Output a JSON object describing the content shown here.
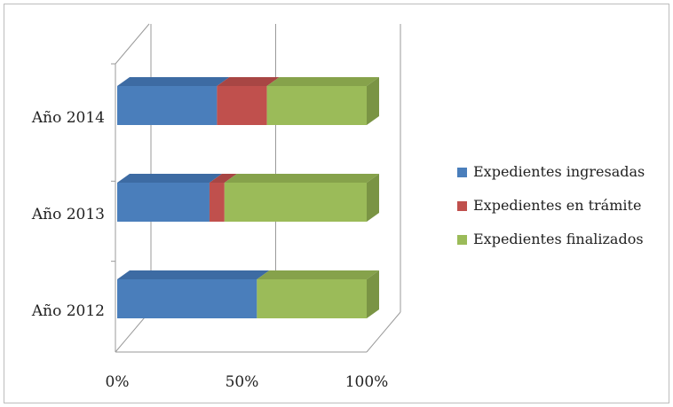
{
  "chart_data": {
    "type": "bar",
    "orientation": "horizontal",
    "stacked": "percent",
    "three_d": true,
    "categories": [
      "Año 2012",
      "Año 2013",
      "Año 2014"
    ],
    "series": [
      {
        "name": "Expedientes ingresadas",
        "values": [
          56,
          37,
          40
        ],
        "color": "#4a7ebb"
      },
      {
        "name": "Expedientes en trámite",
        "values": [
          0,
          6,
          20
        ],
        "color": "#c0504d"
      },
      {
        "name": "Expedientes finalizados",
        "values": [
          44,
          57,
          40
        ],
        "color": "#9bbb59"
      }
    ],
    "x_ticks": [
      "0%",
      "50%",
      "100%"
    ],
    "xlim": [
      0,
      100
    ],
    "grid": true,
    "legend_position": "right",
    "title": "",
    "xlabel": "",
    "ylabel": ""
  },
  "colors": {
    "ingresadas_side": "#3a6396",
    "ingresadas_top": "#3d6ba3",
    "tramite_side": "#9a3c3a",
    "tramite_top": "#a84644",
    "finalizados_side": "#7a9444",
    "finalizados_top": "#86a24b"
  }
}
